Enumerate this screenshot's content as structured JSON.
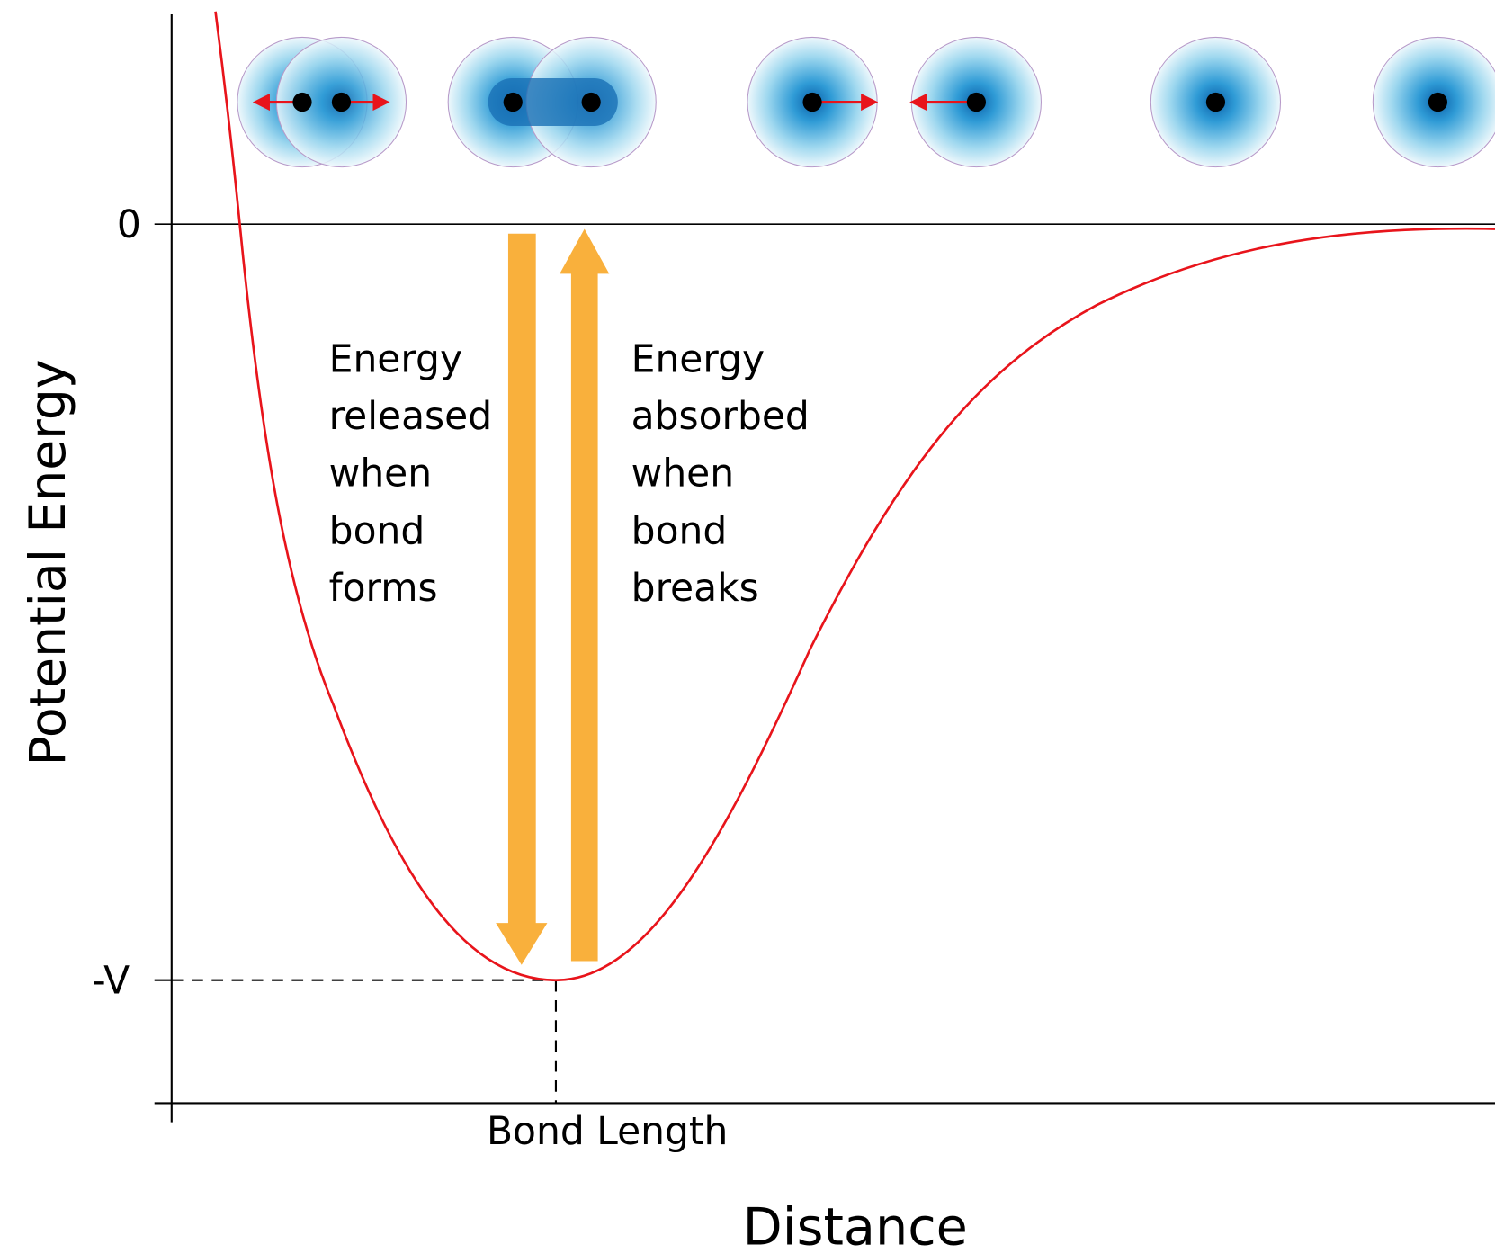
{
  "axes": {
    "y_label": "Potential Energy",
    "x_label": "Distance",
    "y_ticks": [
      "0",
      "-V"
    ],
    "x_ticks": [
      "Bond Length"
    ]
  },
  "annotations": [
    {
      "lines": [
        "Energy",
        "released",
        "when",
        "bond",
        "forms"
      ]
    },
    {
      "lines": [
        "Energy",
        "absorbed",
        "when",
        "bond",
        "breaks"
      ]
    }
  ]
}
